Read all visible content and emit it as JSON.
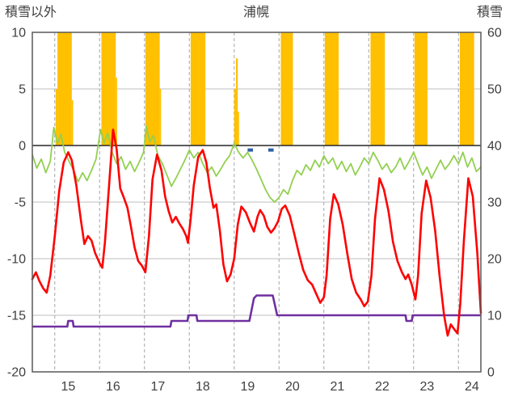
{
  "chart_data": {
    "type": "line",
    "title": "浦幌",
    "left_axis_title": "積雪以外",
    "right_axis_title": "積雪",
    "x_domain": [
      14.5,
      24.5
    ],
    "left_axis": {
      "min": -20,
      "max": 10,
      "ticks": [
        10,
        5,
        0,
        -5,
        -10,
        -15,
        -20
      ]
    },
    "right_axis": {
      "min": 0,
      "max": 60,
      "ticks": [
        60,
        50,
        40,
        30,
        20,
        10,
        0
      ]
    },
    "x_ticks": [
      15,
      16,
      17,
      18,
      19,
      20,
      21,
      22,
      23,
      24
    ],
    "grid": {
      "vertical_dashed": true,
      "horizontal_solid": true
    },
    "colors": {
      "sunshine_bar": "#FFC000",
      "red_line": "#FF0000",
      "green_line": "#92D050",
      "purple_line": "#7030A0",
      "blue_marks": "#2F5FA5",
      "grid_v": "#A6A6A6",
      "grid_h": "#BFBFBF",
      "zero_line": "#262626",
      "border": "#595959",
      "text": "#404040"
    },
    "sunshine_bars": [
      [
        15.02,
        15.06,
        5
      ],
      [
        15.06,
        15.38,
        10
      ],
      [
        15.38,
        15.41,
        4
      ],
      [
        16.04,
        16.36,
        10
      ],
      [
        16.36,
        16.39,
        6
      ],
      [
        17.02,
        17.34,
        10
      ],
      [
        17.34,
        17.37,
        5
      ],
      [
        18.03,
        18.36,
        10
      ],
      [
        19.0,
        19.04,
        5
      ],
      [
        19.04,
        19.08,
        7.7
      ],
      [
        19.08,
        19.11,
        3
      ],
      [
        20.04,
        20.31,
        10
      ],
      [
        21.02,
        21.33,
        10
      ],
      [
        22.04,
        22.36,
        10
      ],
      [
        23.02,
        23.31,
        10
      ],
      [
        24.03,
        24.35,
        10
      ]
    ],
    "series": {
      "red_line": [
        [
          14.5,
          -11.8
        ],
        [
          14.58,
          -11.2
        ],
        [
          14.66,
          -12.0
        ],
        [
          14.74,
          -12.6
        ],
        [
          14.82,
          -13.0
        ],
        [
          14.9,
          -11.5
        ],
        [
          15.0,
          -8.0
        ],
        [
          15.1,
          -4.0
        ],
        [
          15.2,
          -1.5
        ],
        [
          15.3,
          -0.6
        ],
        [
          15.38,
          -1.3
        ],
        [
          15.48,
          -3.5
        ],
        [
          15.58,
          -6.5
        ],
        [
          15.66,
          -8.7
        ],
        [
          15.74,
          -8.0
        ],
        [
          15.82,
          -8.4
        ],
        [
          15.9,
          -9.5
        ],
        [
          16.0,
          -10.4
        ],
        [
          16.06,
          -10.8
        ],
        [
          16.12,
          -8.5
        ],
        [
          16.22,
          -3.0
        ],
        [
          16.3,
          1.4
        ],
        [
          16.38,
          -0.3
        ],
        [
          16.46,
          -3.8
        ],
        [
          16.54,
          -4.6
        ],
        [
          16.62,
          -5.5
        ],
        [
          16.7,
          -7.2
        ],
        [
          16.78,
          -9.0
        ],
        [
          16.86,
          -10.2
        ],
        [
          16.94,
          -10.6
        ],
        [
          17.02,
          -11.2
        ],
        [
          17.1,
          -8.0
        ],
        [
          17.18,
          -3.0
        ],
        [
          17.28,
          -0.8
        ],
        [
          17.38,
          -2.2
        ],
        [
          17.46,
          -4.5
        ],
        [
          17.54,
          -5.8
        ],
        [
          17.62,
          -6.8
        ],
        [
          17.7,
          -6.3
        ],
        [
          17.78,
          -6.9
        ],
        [
          17.86,
          -7.4
        ],
        [
          17.93,
          -8.0
        ],
        [
          17.97,
          -8.6
        ],
        [
          18.03,
          -6.5
        ],
        [
          18.1,
          -3.5
        ],
        [
          18.2,
          -1.0
        ],
        [
          18.3,
          -0.4
        ],
        [
          18.38,
          -1.5
        ],
        [
          18.46,
          -3.8
        ],
        [
          18.54,
          -5.5
        ],
        [
          18.6,
          -5.2
        ],
        [
          18.68,
          -7.5
        ],
        [
          18.76,
          -10.5
        ],
        [
          18.84,
          -12.0
        ],
        [
          18.92,
          -11.4
        ],
        [
          19.0,
          -10.0
        ],
        [
          19.08,
          -7.0
        ],
        [
          19.16,
          -5.4
        ],
        [
          19.26,
          -5.9
        ],
        [
          19.36,
          -6.9
        ],
        [
          19.44,
          -7.6
        ],
        [
          19.52,
          -6.3
        ],
        [
          19.58,
          -5.7
        ],
        [
          19.66,
          -6.2
        ],
        [
          19.74,
          -7.2
        ],
        [
          19.82,
          -7.7
        ],
        [
          19.9,
          -7.3
        ],
        [
          19.98,
          -6.7
        ],
        [
          20.06,
          -5.6
        ],
        [
          20.14,
          -5.3
        ],
        [
          20.24,
          -6.2
        ],
        [
          20.34,
          -7.8
        ],
        [
          20.44,
          -9.5
        ],
        [
          20.54,
          -11.0
        ],
        [
          20.64,
          -11.9
        ],
        [
          20.74,
          -12.3
        ],
        [
          20.84,
          -13.2
        ],
        [
          20.92,
          -13.9
        ],
        [
          21.0,
          -13.4
        ],
        [
          21.06,
          -11.5
        ],
        [
          21.14,
          -6.5
        ],
        [
          21.22,
          -4.3
        ],
        [
          21.32,
          -5.2
        ],
        [
          21.42,
          -7.0
        ],
        [
          21.52,
          -9.5
        ],
        [
          21.62,
          -11.8
        ],
        [
          21.72,
          -13.0
        ],
        [
          21.82,
          -13.6
        ],
        [
          21.9,
          -14.2
        ],
        [
          21.98,
          -13.8
        ],
        [
          22.06,
          -11.5
        ],
        [
          22.14,
          -6.5
        ],
        [
          22.24,
          -2.9
        ],
        [
          22.34,
          -3.9
        ],
        [
          22.44,
          -5.8
        ],
        [
          22.54,
          -8.5
        ],
        [
          22.64,
          -10.2
        ],
        [
          22.74,
          -11.2
        ],
        [
          22.82,
          -11.8
        ],
        [
          22.88,
          -11.4
        ],
        [
          22.96,
          -12.3
        ],
        [
          23.04,
          -13.6
        ],
        [
          23.1,
          -11.5
        ],
        [
          23.18,
          -6.0
        ],
        [
          23.28,
          -3.1
        ],
        [
          23.38,
          -4.6
        ],
        [
          23.48,
          -7.5
        ],
        [
          23.58,
          -11.5
        ],
        [
          23.68,
          -15.0
        ],
        [
          23.76,
          -16.8
        ],
        [
          23.83,
          -15.8
        ],
        [
          23.9,
          -16.2
        ],
        [
          23.98,
          -16.6
        ],
        [
          24.04,
          -14.0
        ],
        [
          24.12,
          -8.5
        ],
        [
          24.22,
          -2.9
        ],
        [
          24.32,
          -4.5
        ],
        [
          24.42,
          -9.5
        ],
        [
          24.5,
          -14.8
        ]
      ],
      "green_line": [
        [
          14.5,
          -0.8
        ],
        [
          14.6,
          -2.0
        ],
        [
          14.7,
          -1.2
        ],
        [
          14.8,
          -2.4
        ],
        [
          14.9,
          -1.4
        ],
        [
          14.98,
          1.6
        ],
        [
          15.06,
          0.2
        ],
        [
          15.14,
          1.0
        ],
        [
          15.22,
          -0.6
        ],
        [
          15.32,
          -1.4
        ],
        [
          15.42,
          -2.2
        ],
        [
          15.52,
          -3.2
        ],
        [
          15.62,
          -2.4
        ],
        [
          15.72,
          -3.1
        ],
        [
          15.82,
          -2.2
        ],
        [
          15.92,
          -1.2
        ],
        [
          16.02,
          1.4
        ],
        [
          16.1,
          0.2
        ],
        [
          16.18,
          1.1
        ],
        [
          16.28,
          -0.6
        ],
        [
          16.38,
          -1.6
        ],
        [
          16.48,
          -1.0
        ],
        [
          16.58,
          -2.1
        ],
        [
          16.68,
          -1.4
        ],
        [
          16.78,
          -2.3
        ],
        [
          16.88,
          -1.5
        ],
        [
          16.98,
          -0.6
        ],
        [
          17.04,
          1.7
        ],
        [
          17.12,
          0.3
        ],
        [
          17.2,
          0.9
        ],
        [
          17.3,
          -0.9
        ],
        [
          17.4,
          -1.6
        ],
        [
          17.5,
          -2.6
        ],
        [
          17.6,
          -3.6
        ],
        [
          17.7,
          -2.9
        ],
        [
          17.8,
          -2.1
        ],
        [
          17.9,
          -1.3
        ],
        [
          18.0,
          -0.4
        ],
        [
          18.1,
          -1.1
        ],
        [
          18.2,
          -0.6
        ],
        [
          18.3,
          -1.6
        ],
        [
          18.4,
          -2.4
        ],
        [
          18.5,
          -1.9
        ],
        [
          18.6,
          -2.7
        ],
        [
          18.7,
          -2.1
        ],
        [
          18.8,
          -1.4
        ],
        [
          18.9,
          -0.9
        ],
        [
          19.0,
          0.2
        ],
        [
          19.1,
          -0.6
        ],
        [
          19.2,
          -1.1
        ],
        [
          19.3,
          -0.6
        ],
        [
          19.4,
          -1.3
        ],
        [
          19.5,
          -2.1
        ],
        [
          19.6,
          -3.0
        ],
        [
          19.7,
          -3.9
        ],
        [
          19.8,
          -4.6
        ],
        [
          19.9,
          -5.0
        ],
        [
          20.0,
          -4.6
        ],
        [
          20.1,
          -3.9
        ],
        [
          20.2,
          -4.3
        ],
        [
          20.3,
          -3.1
        ],
        [
          20.4,
          -2.2
        ],
        [
          20.5,
          -2.6
        ],
        [
          20.6,
          -1.7
        ],
        [
          20.7,
          -2.2
        ],
        [
          20.8,
          -1.3
        ],
        [
          20.9,
          -1.9
        ],
        [
          21.0,
          -0.9
        ],
        [
          21.1,
          -1.6
        ],
        [
          21.2,
          -1.1
        ],
        [
          21.3,
          -2.1
        ],
        [
          21.4,
          -1.4
        ],
        [
          21.5,
          -2.3
        ],
        [
          21.6,
          -1.6
        ],
        [
          21.7,
          -2.6
        ],
        [
          21.8,
          -1.9
        ],
        [
          21.9,
          -1.1
        ],
        [
          22.0,
          -1.6
        ],
        [
          22.1,
          -0.6
        ],
        [
          22.2,
          -1.3
        ],
        [
          22.3,
          -2.1
        ],
        [
          22.4,
          -1.6
        ],
        [
          22.5,
          -2.4
        ],
        [
          22.6,
          -1.9
        ],
        [
          22.7,
          -1.1
        ],
        [
          22.8,
          -2.1
        ],
        [
          22.9,
          -1.4
        ],
        [
          23.0,
          -0.6
        ],
        [
          23.1,
          -1.6
        ],
        [
          23.2,
          -2.6
        ],
        [
          23.3,
          -1.9
        ],
        [
          23.4,
          -2.9
        ],
        [
          23.5,
          -2.1
        ],
        [
          23.6,
          -1.3
        ],
        [
          23.7,
          -2.1
        ],
        [
          23.8,
          -1.6
        ],
        [
          23.9,
          -0.9
        ],
        [
          24.0,
          -1.6
        ],
        [
          24.1,
          -0.6
        ],
        [
          24.2,
          -1.9
        ],
        [
          24.3,
          -1.1
        ],
        [
          24.4,
          -2.3
        ],
        [
          24.5,
          -1.9
        ]
      ],
      "purple_snow_depth_cm": [
        [
          14.5,
          8
        ],
        [
          15.28,
          8
        ],
        [
          15.3,
          9
        ],
        [
          15.4,
          9
        ],
        [
          15.42,
          8
        ],
        [
          17.58,
          8
        ],
        [
          17.6,
          9
        ],
        [
          17.96,
          9
        ],
        [
          17.98,
          10
        ],
        [
          18.16,
          10
        ],
        [
          18.18,
          9
        ],
        [
          19.34,
          9
        ],
        [
          19.44,
          13
        ],
        [
          19.5,
          13.5
        ],
        [
          19.86,
          13.5
        ],
        [
          19.96,
          10
        ],
        [
          22.82,
          10
        ],
        [
          22.84,
          9
        ],
        [
          22.96,
          9
        ],
        [
          22.98,
          10
        ],
        [
          24.5,
          10
        ]
      ],
      "blue_segments": [
        [
          19.3,
          19.42,
          -0.4
        ],
        [
          19.76,
          19.88,
          -0.4
        ]
      ]
    }
  }
}
